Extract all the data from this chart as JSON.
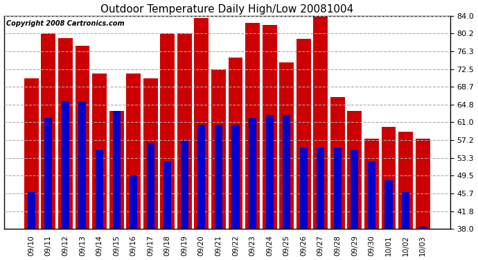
{
  "title": "Outdoor Temperature Daily High/Low 20081004",
  "copyright": "Copyright 2008 Cartronics.com",
  "categories": [
    "09/10",
    "09/11",
    "09/12",
    "09/13",
    "09/14",
    "09/15",
    "09/16",
    "09/17",
    "09/18",
    "09/19",
    "09/20",
    "09/21",
    "09/22",
    "09/23",
    "09/24",
    "09/25",
    "09/26",
    "09/27",
    "09/28",
    "09/29",
    "09/30",
    "10/01",
    "10/02",
    "10/03"
  ],
  "highs": [
    70.5,
    80.2,
    79.2,
    77.5,
    71.5,
    63.5,
    71.5,
    70.5,
    80.2,
    80.2,
    83.5,
    72.5,
    75.0,
    82.5,
    82.0,
    74.0,
    79.0,
    84.0,
    66.5,
    63.5,
    57.5,
    60.0,
    59.0,
    57.5
  ],
  "lows": [
    46.0,
    62.0,
    65.5,
    65.5,
    55.0,
    63.5,
    49.5,
    56.5,
    52.5,
    57.0,
    60.5,
    60.5,
    60.5,
    62.0,
    62.5,
    62.5,
    55.5,
    55.5,
    55.5,
    55.0,
    52.5,
    48.5,
    46.0,
    38.5
  ],
  "high_color": "#cc0000",
  "low_color": "#0000cc",
  "background_color": "#ffffff",
  "plot_background": "#ffffff",
  "grid_color": "#aaaaaa",
  "ylim_min": 38.0,
  "ylim_max": 84.0,
  "yticks": [
    38.0,
    41.8,
    45.7,
    49.5,
    53.3,
    57.2,
    61.0,
    64.8,
    68.7,
    72.5,
    76.3,
    80.2,
    84.0
  ],
  "red_bar_width": 0.85,
  "blue_bar_width": 0.45
}
